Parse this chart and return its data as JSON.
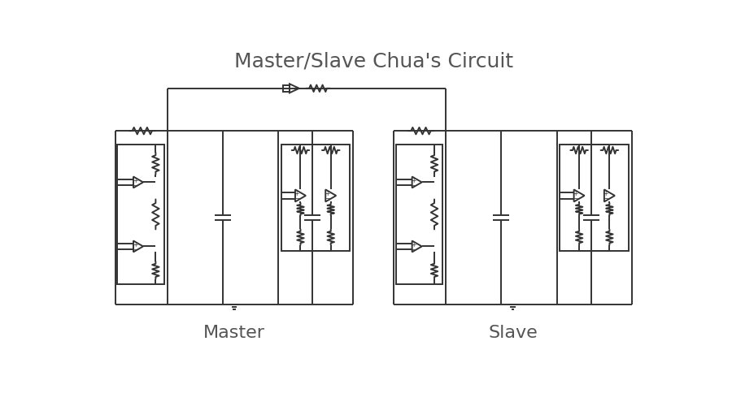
{
  "title": "Master/Slave Chua's Circuit",
  "title_fontsize": 18,
  "title_color": "#555555",
  "label_master": "Master",
  "label_slave": "Slave",
  "label_fontsize": 16,
  "bg_color": "#ffffff",
  "line_color": "#333333",
  "line_width": 1.4
}
